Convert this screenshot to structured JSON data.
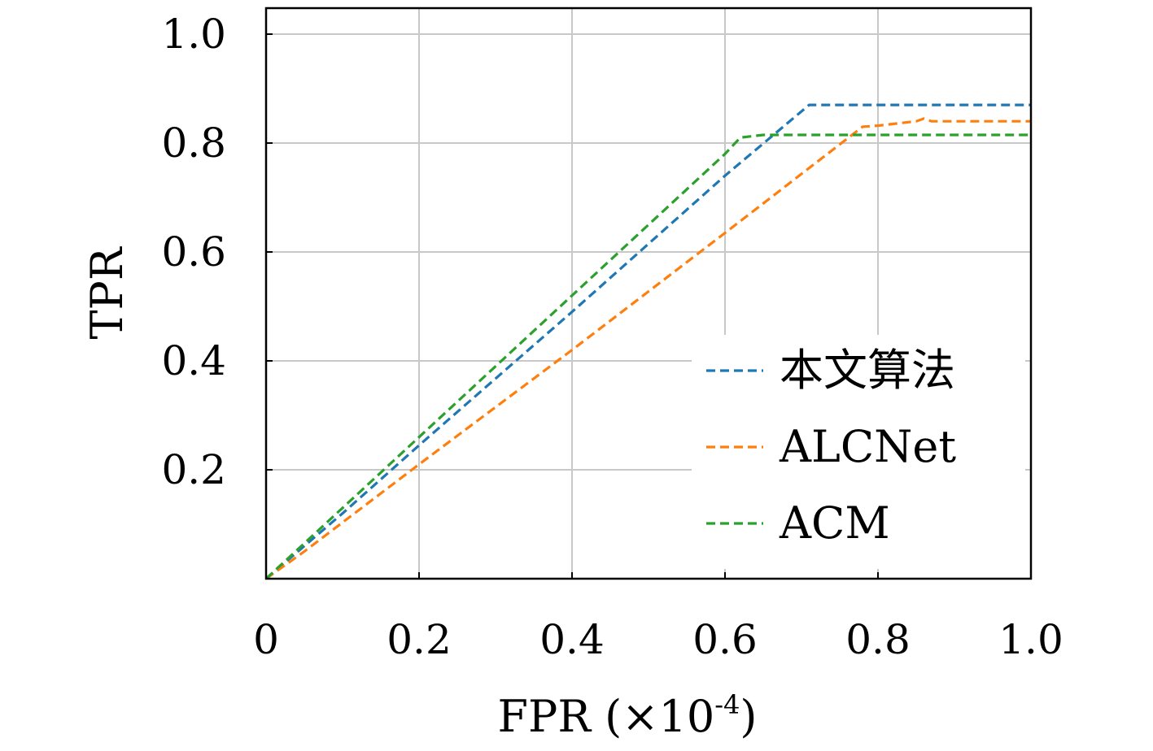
{
  "chart_data": {
    "type": "line",
    "xlabel": "FPR (×10",
    "xlabel_exponent": "-4",
    "xlabel_close": ")",
    "ylabel": "TPR",
    "xlim": [
      0,
      1.0
    ],
    "ylim": [
      0,
      1.0
    ],
    "xticks": [
      0,
      0.2,
      0.4,
      0.6,
      0.8,
      1.0
    ],
    "xtick_labels": [
      "0",
      "0.2",
      "0.4",
      "0.6",
      "0.8",
      "1.0"
    ],
    "yticks": [
      0.2,
      0.4,
      0.6,
      0.8,
      1.0
    ],
    "ytick_labels": [
      "0.2",
      "0.4",
      "0.6",
      "0.8",
      "1.0"
    ],
    "grid": true,
    "legend_position": "lower-right",
    "series": [
      {
        "name": "本文算法",
        "color": "#1f77b4",
        "linestyle": "dashed",
        "x": [
          0,
          0.05,
          0.1,
          0.2,
          0.4,
          0.6,
          0.71,
          0.8,
          1.0
        ],
        "y": [
          0,
          0.06,
          0.12,
          0.245,
          0.49,
          0.74,
          0.87,
          0.87,
          0.87
        ]
      },
      {
        "name": "ALCNet",
        "color": "#ff7f0e",
        "linestyle": "dashed",
        "x": [
          0,
          0.05,
          0.2,
          0.4,
          0.6,
          0.78,
          0.8,
          0.85,
          0.86,
          0.87,
          1.0
        ],
        "y": [
          0,
          0.05,
          0.21,
          0.42,
          0.635,
          0.83,
          0.832,
          0.84,
          0.845,
          0.84,
          0.84
        ]
      },
      {
        "name": "ACM",
        "color": "#2ca02c",
        "linestyle": "dashed",
        "x": [
          0,
          0.05,
          0.2,
          0.4,
          0.6,
          0.62,
          0.65,
          0.8,
          1.0
        ],
        "y": [
          0,
          0.065,
          0.26,
          0.52,
          0.78,
          0.81,
          0.815,
          0.815,
          0.815
        ]
      }
    ]
  }
}
